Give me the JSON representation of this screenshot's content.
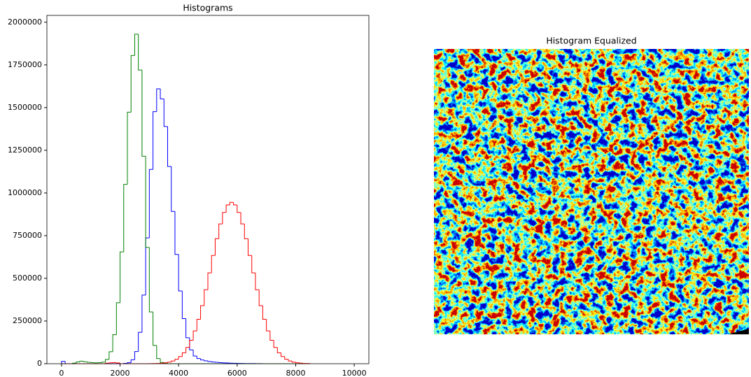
{
  "chart_data": [
    {
      "type": "histogram",
      "title": "Histograms",
      "bins": [
        0,
        125,
        250,
        375,
        500,
        625,
        750,
        875,
        1000,
        1125,
        1250,
        1375,
        1500,
        1625,
        1750,
        1875,
        2000,
        2125,
        2250,
        2375,
        2500,
        2625,
        2750,
        2875,
        3000,
        3125,
        3250,
        3375,
        3500,
        3625,
        3750,
        3875,
        4000,
        4125,
        4250,
        4375,
        4500,
        4625,
        4750,
        4875,
        5000,
        5125,
        5250,
        5375,
        5500,
        5625,
        5750,
        5875,
        6000,
        6125,
        6250,
        6375,
        6500,
        6625,
        6750,
        6875,
        7000,
        7125,
        7250,
        7375,
        7500,
        7625,
        7750,
        7875,
        8000,
        8125,
        8250,
        8375,
        8500
      ],
      "series": [
        {
          "color": "#0000ff",
          "values": [
            14000,
            0,
            0,
            0,
            0,
            0,
            0,
            0,
            0,
            0,
            0,
            0,
            0,
            0,
            0,
            0,
            0,
            2000,
            6000,
            23000,
            71000,
            184000,
            402000,
            737000,
            1138000,
            1476000,
            1610000,
            1551000,
            1389000,
            1155000,
            892000,
            640000,
            426000,
            264000,
            152000,
            81000,
            45000,
            30000,
            22000,
            17000,
            13000,
            10000,
            8000,
            6000,
            5000,
            4000,
            3000,
            2500,
            2000,
            1500,
            1200,
            1000,
            800,
            500,
            300,
            0,
            0,
            0,
            0,
            0,
            0,
            0,
            0,
            0,
            0,
            0,
            0,
            0
          ]
        },
        {
          "color": "#008000",
          "values": [
            0,
            0,
            0,
            3000,
            10000,
            15000,
            12000,
            8000,
            6000,
            5000,
            6000,
            9000,
            25000,
            70000,
            170000,
            357000,
            655000,
            1050000,
            1473000,
            1805000,
            1930000,
            1720000,
            1215000,
            681000,
            303000,
            107000,
            30000,
            7000,
            1500,
            0,
            0,
            0,
            0,
            0,
            0,
            0,
            0,
            0,
            0,
            0,
            0,
            0,
            0,
            0,
            0,
            0,
            0,
            0,
            0,
            0,
            0,
            0,
            0,
            0,
            0,
            0,
            0,
            0,
            0,
            0,
            0,
            0,
            0,
            0,
            0,
            0,
            0,
            0
          ]
        },
        {
          "color": "#ff0000",
          "values": [
            0,
            0,
            0,
            0,
            0,
            0,
            0,
            0,
            0,
            0,
            0,
            0,
            3000,
            5000,
            6000,
            4000,
            0,
            0,
            0,
            0,
            0,
            0,
            0,
            0,
            450,
            900,
            1700,
            3000,
            5500,
            9400,
            16000,
            26000,
            42000,
            64000,
            95000,
            137000,
            192000,
            260000,
            340000,
            433000,
            532000,
            634000,
            732000,
            819000,
            886000,
            930000,
            945000,
            930000,
            886000,
            819000,
            732000,
            634000,
            532000,
            433000,
            340000,
            260000,
            192000,
            137000,
            95000,
            64000,
            42000,
            26000,
            16000,
            9400,
            5500,
            3000,
            1700,
            900
          ]
        }
      ],
      "xlim": [
        -500,
        10500
      ],
      "xticks": [
        0,
        2000,
        4000,
        6000,
        8000,
        10000
      ],
      "ylim": [
        0,
        2040000
      ],
      "yticks": [
        0,
        250000,
        500000,
        750000,
        1000000,
        1250000,
        1500000,
        1750000,
        2000000
      ]
    },
    {
      "type": "image",
      "title": "Histogram Equalized"
    }
  ]
}
